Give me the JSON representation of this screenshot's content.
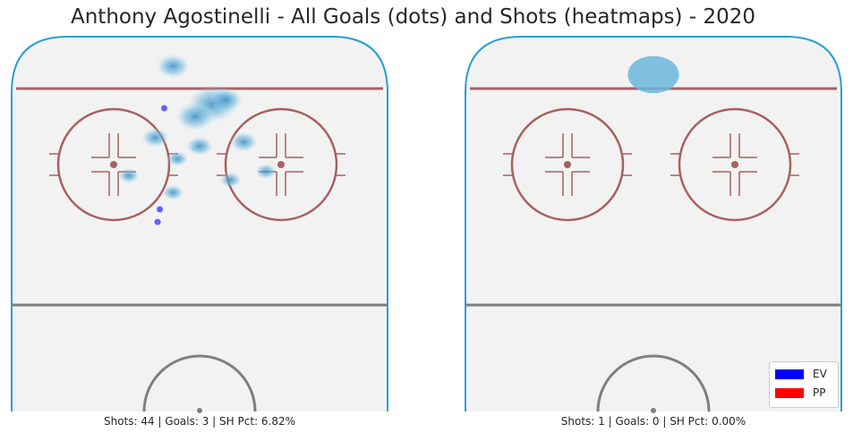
{
  "chart_data": [
    {
      "type": "scatter",
      "title": "Anthony Agostinelli - All Goals (dots) and Shots (heatmaps) - 2020",
      "caption": "Shots: 44 | Goals: 3 | SH Pct: 6.82%",
      "xlim": [
        -42.5,
        42.5
      ],
      "ylim": [
        0,
        89
      ],
      "goals": [
        {
          "x": -8,
          "y": 72,
          "strength": "EV"
        },
        {
          "x": -9,
          "y": 48,
          "strength": "EV"
        },
        {
          "x": -9.5,
          "y": 45,
          "strength": "EV"
        }
      ],
      "shot_density": [
        {
          "x": -6,
          "y": 82,
          "weight": 3
        },
        {
          "x": 3,
          "y": 73,
          "weight": 6
        },
        {
          "x": -1,
          "y": 70,
          "weight": 4
        },
        {
          "x": 6,
          "y": 74,
          "weight": 3
        },
        {
          "x": 10,
          "y": 64,
          "weight": 2
        },
        {
          "x": 0,
          "y": 63,
          "weight": 2
        },
        {
          "x": -10,
          "y": 65,
          "weight": 2
        },
        {
          "x": -5,
          "y": 60,
          "weight": 1
        },
        {
          "x": 15,
          "y": 57,
          "weight": 1
        },
        {
          "x": -16,
          "y": 56,
          "weight": 1
        },
        {
          "x": 7,
          "y": 55,
          "weight": 1
        },
        {
          "x": -6,
          "y": 52,
          "weight": 1
        }
      ]
    },
    {
      "type": "scatter",
      "caption": "Shots: 1 | Goals: 0 | SH Pct: 0.00%",
      "xlim": [
        -42.5,
        42.5
      ],
      "ylim": [
        0,
        89
      ],
      "goals": [],
      "shot_density": [
        {
          "x": 0,
          "y": 80,
          "weight": 1
        }
      ]
    }
  ],
  "legend": {
    "placement": "bottom-right",
    "entries": [
      {
        "label": "EV",
        "color": "#0000ff"
      },
      {
        "label": "PP",
        "color": "#ff0000"
      }
    ]
  },
  "colors": {
    "boards": "#2b9fd1",
    "red_lines": "#a86060",
    "center_line": "#7f7f7f",
    "ice": "#f2f2f2",
    "heat": "#6bb7dd"
  }
}
